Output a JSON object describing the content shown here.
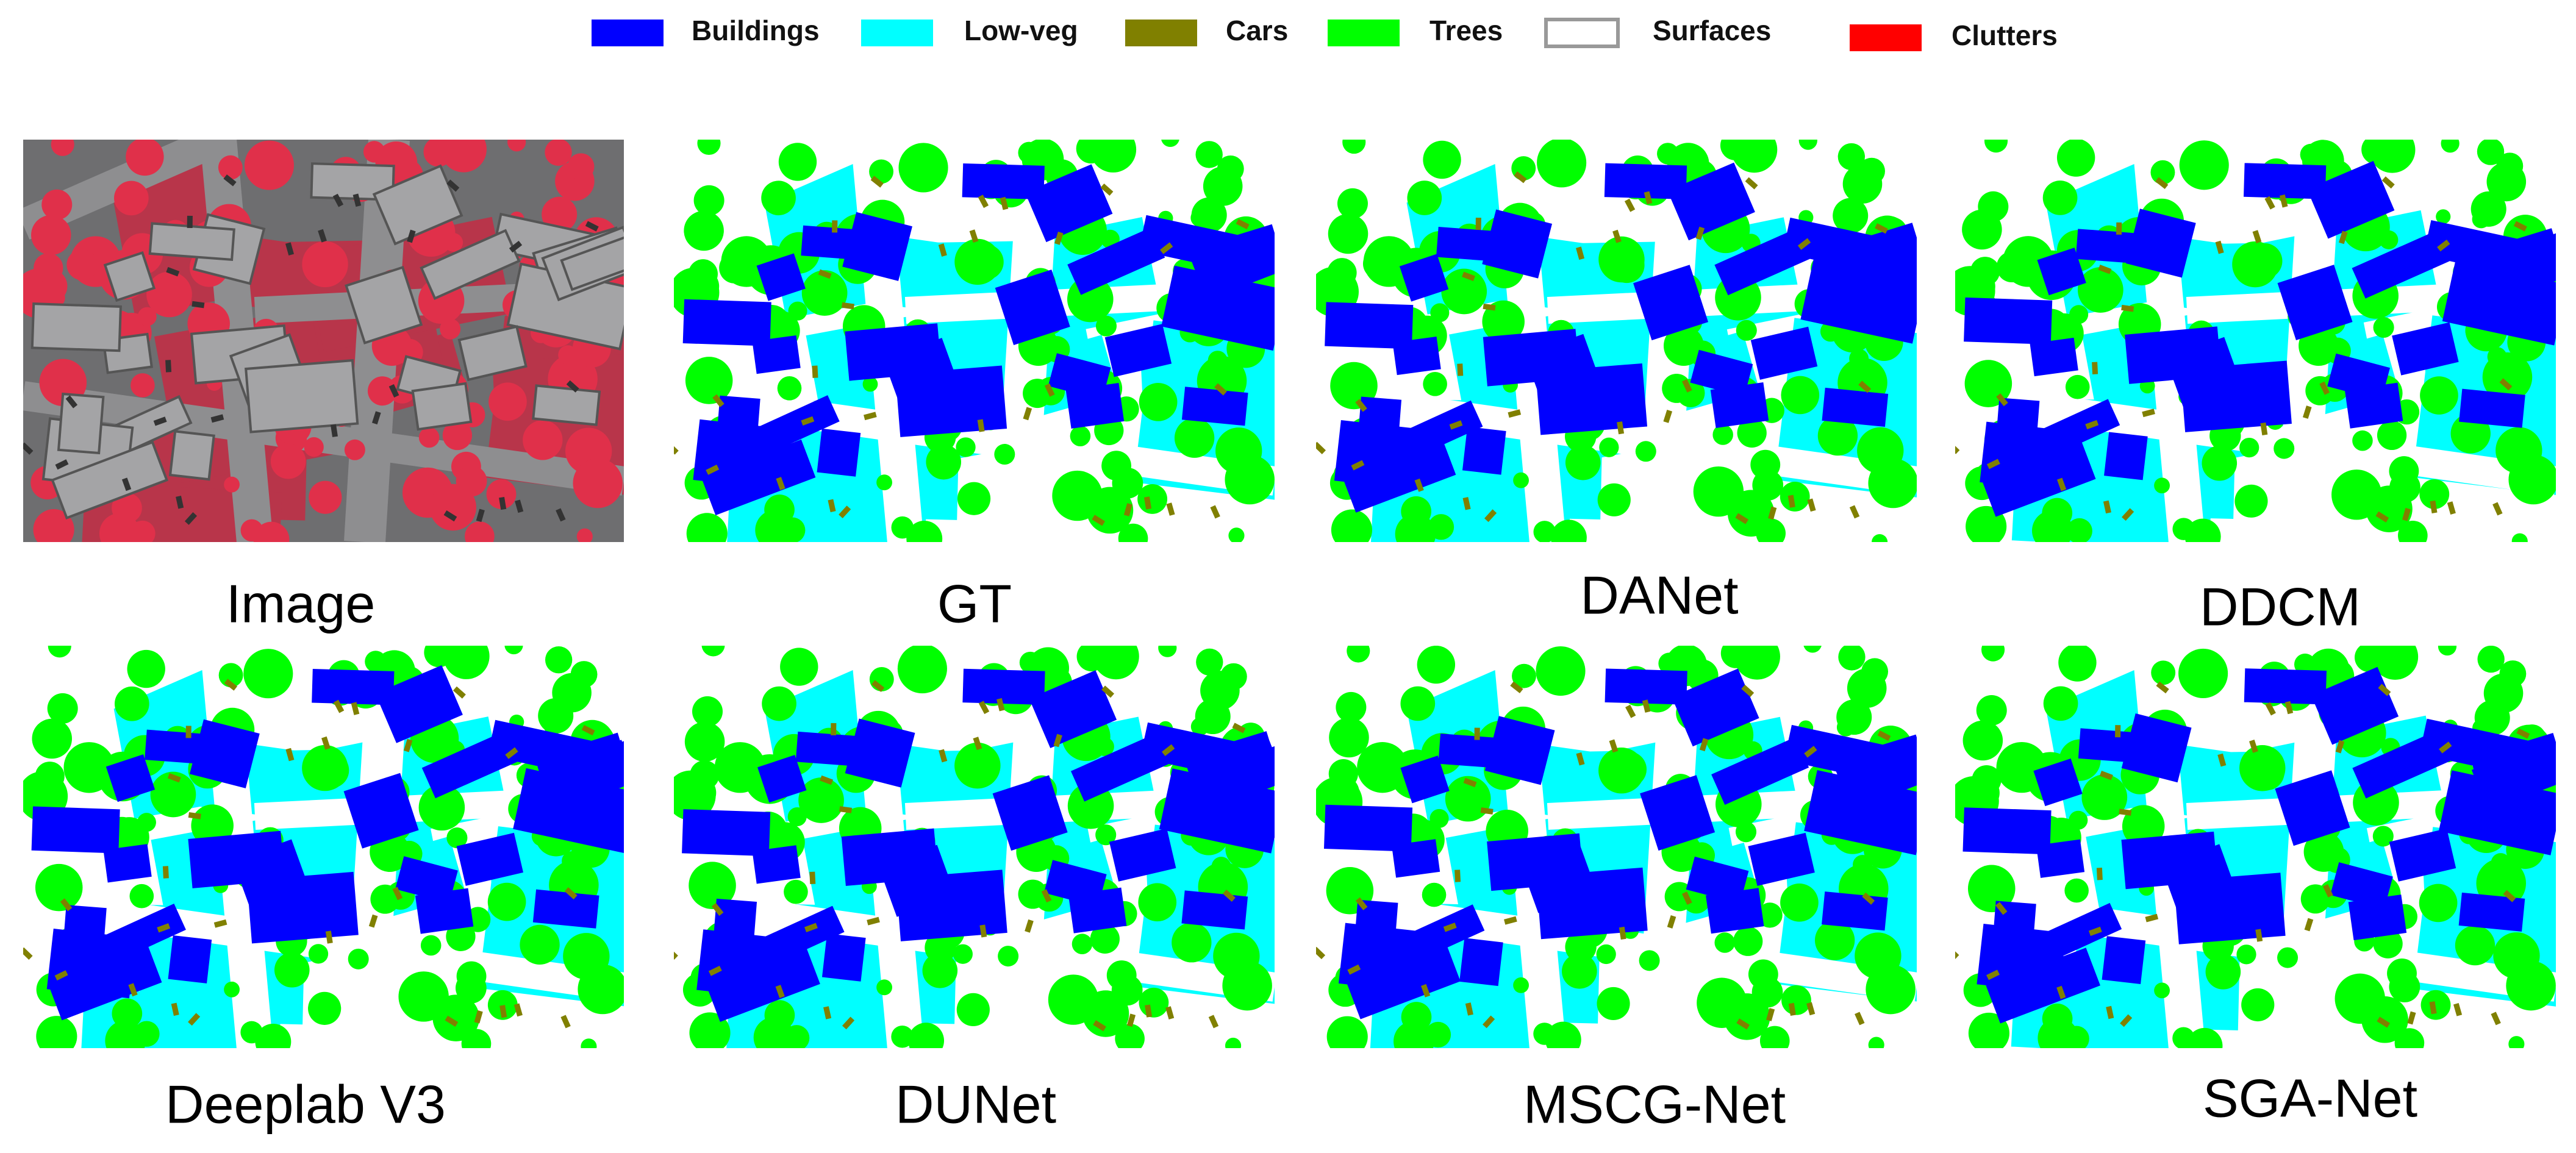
{
  "legend": [
    {
      "label": "Buildings",
      "color": "#0000ff"
    },
    {
      "label": "Low-veg",
      "color": "#00ffff"
    },
    {
      "label": "Cars",
      "color": "#808000"
    },
    {
      "label": "Trees",
      "color": "#00ff00"
    },
    {
      "label": "Surfaces",
      "color": "#ffffff"
    },
    {
      "label": "Clutters",
      "color": "#ff0000"
    }
  ],
  "panels": [
    {
      "caption": "Image"
    },
    {
      "caption": "GT"
    },
    {
      "caption": "DANet"
    },
    {
      "caption": "DDCM"
    },
    {
      "caption": "Deeplab V3"
    },
    {
      "caption": "DUNet"
    },
    {
      "caption": "MSCG-Net"
    },
    {
      "caption": "SGA-Net"
    }
  ]
}
